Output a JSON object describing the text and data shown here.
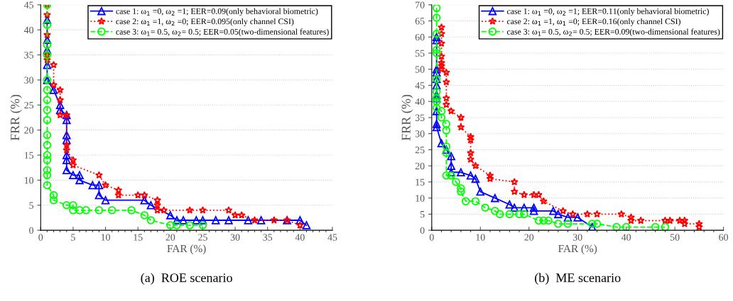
{
  "chart_data": [
    {
      "type": "line",
      "xlabel": "FAR (%)",
      "ylabel": "FRR (%)",
      "annotations": [
        "(a)  ROE scenario"
      ],
      "xlim": [
        0,
        45
      ],
      "xticks": [
        0,
        5,
        10,
        15,
        20,
        25,
        30,
        35,
        40,
        45
      ],
      "ylim": [
        0,
        45
      ],
      "yticks": [
        0,
        5,
        10,
        15,
        20,
        25,
        30,
        35,
        40,
        45
      ],
      "grid": "y",
      "legend": "top right",
      "series": [
        {
          "name": "case 1: ω$_{1}$ =0, ω$_{2}$ =1; EER=0.09(only behavioral biometric)",
          "color": "#0000ff",
          "marker": "triangle",
          "line_style": "solid",
          "x": [
            1,
            1,
            1,
            1,
            1,
            2,
            3,
            3,
            4,
            4,
            4,
            4,
            4,
            4,
            4,
            5,
            6,
            6,
            8,
            9,
            9,
            10,
            16,
            17,
            20,
            21,
            22,
            24,
            25,
            27,
            29,
            32,
            34,
            38,
            40,
            41
          ],
          "values": [
            42,
            38,
            36,
            33,
            30,
            28,
            25,
            24,
            23,
            22,
            19,
            18,
            15,
            14,
            12,
            11,
            11,
            10,
            9,
            9,
            7,
            6,
            6,
            5,
            3,
            2,
            2,
            2,
            2,
            2,
            2,
            2,
            2,
            2,
            2,
            1
          ]
        },
        {
          "name": "case 2: ω$_{1}$ =1, ω$_{2}$ =0; EER=0.095(only channel CSI)",
          "color": "#ff0000",
          "marker": "star",
          "line_style": "dotted",
          "x": [
            1,
            1,
            1,
            1,
            1,
            2,
            2,
            3,
            3,
            3,
            4,
            4,
            4,
            5,
            5,
            9,
            10,
            12,
            12,
            15,
            16,
            18,
            18,
            18,
            19,
            23,
            25,
            29,
            30,
            31,
            33,
            36,
            38,
            40
          ],
          "values": [
            45,
            43,
            39,
            35,
            34,
            33,
            29,
            28,
            26,
            23,
            23,
            17,
            16,
            14,
            13,
            11,
            9,
            8,
            7,
            7,
            7,
            6,
            5,
            4,
            4,
            4,
            4,
            4,
            3,
            3,
            2,
            2,
            2,
            1
          ]
        },
        {
          "name": "case 3: ω$_{1}$= 0.5, ω$_{2}$= 0.5; EER=0.05(two-dimensional features)",
          "color": "#00ff00",
          "marker": "circle",
          "line_style": "dashed",
          "x": [
            1,
            1,
            1,
            1,
            1,
            1,
            1,
            1,
            1,
            1,
            1,
            1,
            1,
            1,
            1,
            1,
            2,
            2,
            4,
            5,
            5,
            6,
            7,
            9,
            11,
            14,
            16,
            17,
            20,
            21,
            23,
            25
          ],
          "values": [
            45,
            41,
            37,
            35,
            30,
            28,
            26,
            24,
            22,
            19,
            17,
            15,
            14,
            12,
            11,
            9,
            7,
            6,
            5,
            5,
            4,
            4,
            4,
            4,
            4,
            4,
            3,
            2,
            1,
            1,
            1,
            1
          ]
        }
      ]
    },
    {
      "type": "line",
      "xlabel": "FAR (%)",
      "ylabel": "FRR (%)",
      "annotations": [
        "(b)  ME scenario"
      ],
      "xlim": [
        0,
        60
      ],
      "xticks": [
        0,
        10,
        20,
        30,
        40,
        50,
        60
      ],
      "ylim": [
        0,
        70
      ],
      "yticks": [
        0,
        5,
        10,
        15,
        20,
        25,
        30,
        35,
        40,
        45,
        50,
        55,
        60,
        65,
        70
      ],
      "grid": "y",
      "legend": "top right",
      "series": [
        {
          "name": "case 1: ω$_{1}$ =0, ω$_{2}$ =1; EER=0.11(only behavioral biometric)",
          "color": "#0000ff",
          "marker": "triangle",
          "line_style": "solid",
          "x": [
            1,
            1,
            1,
            1,
            1,
            1,
            1,
            1,
            1,
            1,
            1,
            2,
            3,
            4,
            4,
            4,
            6,
            8,
            9,
            10,
            13,
            16,
            17,
            19,
            21,
            21,
            25,
            26,
            28,
            30,
            33
          ],
          "values": [
            60,
            59,
            50,
            49,
            47,
            45,
            42,
            41,
            37,
            33,
            32,
            27,
            25,
            23,
            20,
            18,
            18,
            17,
            16,
            12,
            10,
            8,
            7,
            7,
            7,
            6,
            6,
            5,
            4,
            4,
            1
          ]
        },
        {
          "name": "case 2: ω$_{1}$ =1, ω$_{1}$ =0; EER=0.16(only channel CSI)",
          "color": "#ff0000",
          "marker": "star",
          "line_style": "dotted",
          "x": [
            2,
            2,
            2,
            2,
            2,
            2,
            2,
            3,
            3,
            3,
            3,
            4,
            6,
            6,
            8,
            8,
            8,
            8,
            9,
            12,
            12,
            17,
            17,
            19,
            21,
            22,
            23,
            27,
            29,
            32,
            34,
            39,
            41,
            41,
            43,
            48,
            49,
            51,
            52,
            52,
            55,
            55
          ],
          "values": [
            63,
            61,
            58,
            54,
            52,
            51,
            50,
            49,
            46,
            41,
            39,
            37,
            35,
            32,
            29,
            28,
            24,
            22,
            20,
            17,
            16,
            15,
            12,
            11,
            11,
            11,
            9,
            6,
            5,
            5,
            5,
            5,
            4,
            3,
            3,
            3,
            3,
            3,
            3,
            2,
            2,
            1
          ]
        },
        {
          "name": "case 3: ω$_{1}$= 0.5, ω$_{2}$= 0.5; EER=0.09(two-dimensional features)",
          "color": "#00ff00",
          "marker": "circle",
          "line_style": "dashed",
          "x": [
            1,
            1,
            1,
            1,
            1,
            1,
            1,
            1,
            1,
            1,
            2,
            2,
            3,
            3,
            3,
            3,
            3,
            4,
            5,
            6,
            6,
            7,
            9,
            11,
            13,
            14,
            16,
            18,
            19,
            22,
            23,
            24,
            26,
            28,
            33,
            34,
            38,
            40,
            46,
            48
          ],
          "values": [
            69,
            66,
            61,
            56,
            55,
            47,
            43,
            41,
            40,
            38,
            37,
            35,
            33,
            31,
            26,
            24,
            17,
            17,
            15,
            13,
            12,
            9,
            9,
            7,
            6,
            5,
            5,
            5,
            5,
            3,
            3,
            3,
            2,
            2,
            2,
            2,
            1,
            1,
            1,
            1
          ]
        }
      ]
    }
  ]
}
